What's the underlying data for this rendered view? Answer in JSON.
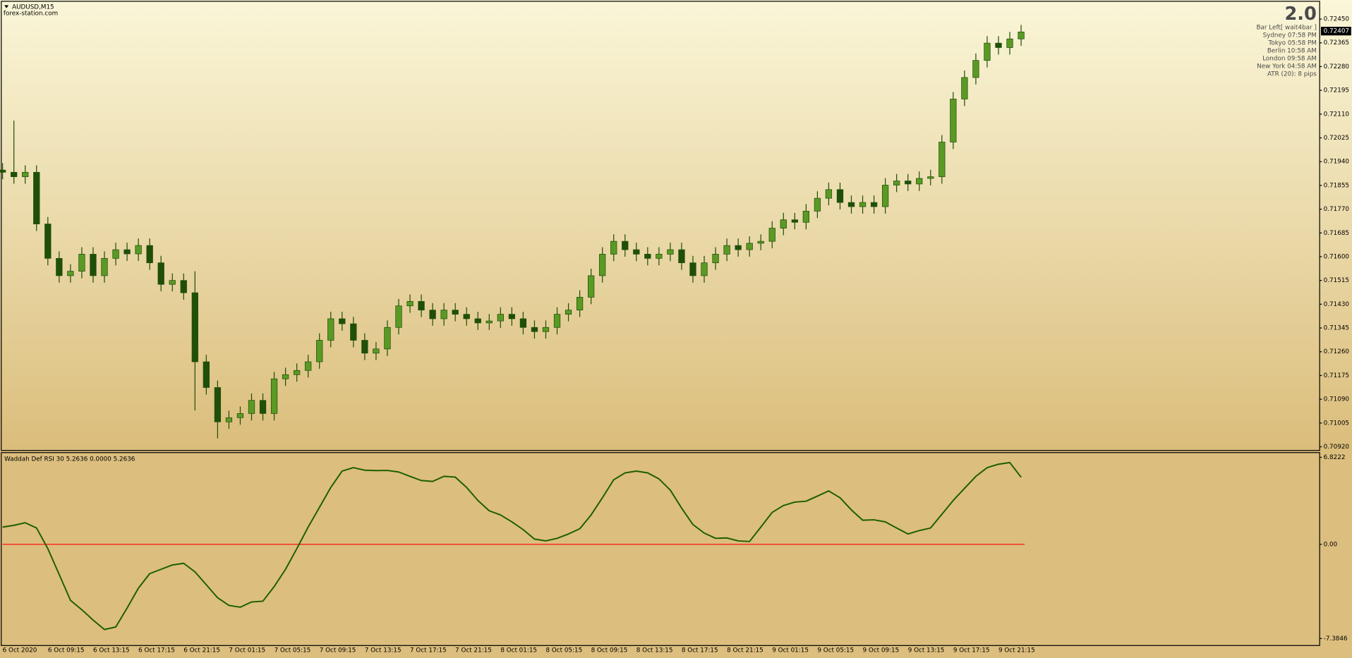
{
  "header": {
    "symbol": "AUDUSD,M15",
    "site": "forex-station.com"
  },
  "info_panel": {
    "version": "2.0",
    "lines": [
      "Bar Left[ wait4bar ]",
      "Sydney  07:58 PM",
      "Tokyo  05:58 PM",
      "Berlin  10:58 AM",
      "London  09:58 AM",
      "New York  04:58 AM",
      "ATR (20): 8 pips"
    ]
  },
  "chart_data": [
    {
      "type": "candlestick",
      "categories": [
        "6 Oct 2020",
        null,
        null,
        null,
        "6 Oct 09:15",
        null,
        null,
        null,
        "6 Oct 13:15",
        null,
        null,
        null,
        "6 Oct 17:15",
        null,
        null,
        null,
        "6 Oct 21:15",
        null,
        null,
        null,
        "7 Oct 01:15",
        null,
        null,
        null,
        "7 Oct 05:15",
        null,
        null,
        null,
        "7 Oct 09:15",
        null,
        null,
        null,
        "7 Oct 13:15",
        null,
        null,
        null,
        "7 Oct 17:15",
        null,
        null,
        null,
        "7 Oct 21:15",
        null,
        null,
        null,
        "8 Oct 01:15",
        null,
        null,
        null,
        "8 Oct 05:15",
        null,
        null,
        null,
        "8 Oct 09:15",
        null,
        null,
        null,
        "8 Oct 13:15",
        null,
        null,
        null,
        "8 Oct 17:15",
        null,
        null,
        null,
        "8 Oct 21:15",
        null,
        null,
        null,
        "9 Oct 01:15",
        null,
        null,
        null,
        "9 Oct 05:15",
        null,
        null,
        null,
        "9 Oct 09:15",
        null,
        null,
        null,
        "9 Oct 13:15",
        null,
        null,
        null,
        "9 Oct 17:15",
        null,
        null,
        null,
        "9 Oct 21:15",
        null,
        null
      ],
      "open": [
        0.7191,
        0.71902,
        0.71886,
        0.71902,
        0.71717,
        0.71594,
        0.71532,
        0.71548,
        0.71609,
        0.71532,
        0.71594,
        0.71625,
        0.7161,
        0.7164,
        0.71578,
        0.71501,
        0.71515,
        0.71471,
        0.71224,
        0.71132,
        0.71009,
        0.71024,
        0.71039,
        0.71086,
        0.71039,
        0.71163,
        0.71178,
        0.71193,
        0.71224,
        0.71301,
        0.71378,
        0.7136,
        0.71301,
        0.71255,
        0.7127,
        0.71347,
        0.71424,
        0.7144,
        0.71409,
        0.71378,
        0.71409,
        0.71394,
        0.71378,
        0.71363,
        0.7137,
        0.71394,
        0.71378,
        0.71347,
        0.71332,
        0.71347,
        0.71394,
        0.71409,
        0.71455,
        0.71532,
        0.71609,
        0.71655,
        0.71625,
        0.71609,
        0.71594,
        0.71609,
        0.71625,
        0.71578,
        0.71532,
        0.71578,
        0.71609,
        0.7164,
        0.71625,
        0.71648,
        0.71655,
        0.71702,
        0.71732,
        0.71723,
        0.71763,
        0.71809,
        0.7184,
        0.71794,
        0.71779,
        0.71794,
        0.71779,
        0.71856,
        0.71871,
        0.7186,
        0.7188,
        0.71886,
        0.7201,
        0.72164,
        0.72241,
        0.72302,
        0.72364,
        0.72348,
        0.72379
      ],
      "high": [
        0.71935,
        0.72087,
        0.71927,
        0.71927,
        0.71742,
        0.71619,
        0.71573,
        0.71634,
        0.71634,
        0.71619,
        0.7165,
        0.7165,
        0.71665,
        0.71665,
        0.71603,
        0.7154,
        0.7154,
        0.71548,
        0.71249,
        0.71157,
        0.71049,
        0.71064,
        0.71111,
        0.71111,
        0.71188,
        0.71203,
        0.71218,
        0.71249,
        0.71326,
        0.71403,
        0.71403,
        0.71385,
        0.71326,
        0.71295,
        0.71372,
        0.71449,
        0.71465,
        0.71465,
        0.71434,
        0.71434,
        0.71434,
        0.71419,
        0.71403,
        0.71395,
        0.71419,
        0.71419,
        0.71403,
        0.71372,
        0.71372,
        0.71419,
        0.71434,
        0.7148,
        0.71557,
        0.71634,
        0.7168,
        0.7168,
        0.7165,
        0.71634,
        0.71634,
        0.7165,
        0.7165,
        0.71603,
        0.71603,
        0.71634,
        0.71665,
        0.71665,
        0.71673,
        0.7168,
        0.71727,
        0.71757,
        0.71757,
        0.71788,
        0.71834,
        0.71865,
        0.71865,
        0.71819,
        0.71819,
        0.71819,
        0.71881,
        0.71896,
        0.71896,
        0.71905,
        0.71911,
        0.72035,
        0.72189,
        0.72266,
        0.72327,
        0.72389,
        0.72389,
        0.72404,
        0.72429
      ],
      "low": [
        0.71877,
        0.71861,
        0.71861,
        0.71692,
        0.71569,
        0.71507,
        0.71507,
        0.71523,
        0.71507,
        0.71507,
        0.71569,
        0.71585,
        0.71585,
        0.71553,
        0.71476,
        0.71476,
        0.71446,
        0.7105,
        0.71107,
        0.7095,
        0.70984,
        0.70999,
        0.71014,
        0.71014,
        0.71014,
        0.71138,
        0.71153,
        0.71168,
        0.71199,
        0.71276,
        0.71335,
        0.71276,
        0.7123,
        0.7123,
        0.71245,
        0.71322,
        0.71399,
        0.71384,
        0.71353,
        0.71353,
        0.71369,
        0.71353,
        0.71338,
        0.71338,
        0.71345,
        0.71353,
        0.71322,
        0.71307,
        0.71307,
        0.71322,
        0.71369,
        0.71384,
        0.7143,
        0.71507,
        0.71584,
        0.716,
        0.71584,
        0.71569,
        0.71569,
        0.71584,
        0.71553,
        0.71507,
        0.71507,
        0.71553,
        0.71584,
        0.716,
        0.716,
        0.71623,
        0.7163,
        0.71677,
        0.71698,
        0.71698,
        0.71738,
        0.71784,
        0.71769,
        0.71754,
        0.71754,
        0.71754,
        0.71754,
        0.71831,
        0.71835,
        0.71835,
        0.71855,
        0.71861,
        0.71985,
        0.72139,
        0.72216,
        0.72277,
        0.72323,
        0.72323,
        0.72354
      ],
      "close": [
        0.71902,
        0.71886,
        0.71902,
        0.71717,
        0.71594,
        0.71532,
        0.71548,
        0.71609,
        0.71532,
        0.71594,
        0.71625,
        0.7161,
        0.7164,
        0.71578,
        0.71501,
        0.71515,
        0.71471,
        0.71224,
        0.71132,
        0.71009,
        0.71024,
        0.71039,
        0.71086,
        0.71039,
        0.71163,
        0.71178,
        0.71193,
        0.71224,
        0.71301,
        0.71378,
        0.7136,
        0.71301,
        0.71255,
        0.7127,
        0.71347,
        0.71424,
        0.7144,
        0.71409,
        0.71378,
        0.71409,
        0.71394,
        0.71378,
        0.71363,
        0.7137,
        0.71394,
        0.71378,
        0.71347,
        0.71332,
        0.71347,
        0.71394,
        0.71409,
        0.71455,
        0.71532,
        0.71609,
        0.71655,
        0.71625,
        0.71609,
        0.71594,
        0.71609,
        0.71625,
        0.71578,
        0.71532,
        0.71578,
        0.71609,
        0.7164,
        0.71625,
        0.71648,
        0.71655,
        0.71702,
        0.71732,
        0.71723,
        0.71763,
        0.71809,
        0.7184,
        0.71794,
        0.71779,
        0.71794,
        0.71779,
        0.71856,
        0.71871,
        0.7186,
        0.7188,
        0.71886,
        0.7201,
        0.72164,
        0.72241,
        0.72302,
        0.72364,
        0.72348,
        0.72379,
        0.72404
      ],
      "up_color": "#5a9a24",
      "down_color": "#1f4f08",
      "current_price": 0.72407,
      "ylim": [
        0.7091,
        0.72509
      ],
      "yticks": [
        {
          "value": 0.7245,
          "label": "0.72450"
        },
        0.72365,
        {
          "value": 0.7228,
          "label": "0.72280"
        },
        0.72195,
        {
          "value": 0.7211,
          "label": "0.72110"
        },
        0.72025,
        {
          "value": 0.7194,
          "label": "0.71940"
        },
        0.71855,
        {
          "value": 0.7177,
          "label": "0.71770"
        },
        0.71685,
        {
          "value": 0.716,
          "label": "0.71600"
        },
        0.71515,
        {
          "value": 0.7143,
          "label": "0.71430"
        },
        0.71345,
        {
          "value": 0.7126,
          "label": "0.71260"
        },
        0.71175,
        {
          "value": 0.7109,
          "label": "0.71090"
        },
        0.71005,
        {
          "value": 0.7092,
          "label": "0.70920"
        }
      ],
      "grid": false
    },
    {
      "type": "line",
      "title": "Waddah Def RSI 30 5.2636 0.0000 5.2636",
      "values": [
        1.35,
        1.49,
        1.69,
        1.28,
        -0.34,
        -2.36,
        -4.39,
        -5.13,
        -5.94,
        -6.68,
        -6.48,
        -5.0,
        -3.44,
        -2.3,
        -1.96,
        -1.62,
        -1.49,
        -2.16,
        -3.17,
        -4.19,
        -4.79,
        -4.93,
        -4.52,
        -4.46,
        -3.31,
        -1.96,
        -0.34,
        1.35,
        2.9,
        4.46,
        5.74,
        6.01,
        5.81,
        5.78,
        5.79,
        5.67,
        5.33,
        5.0,
        4.93,
        5.33,
        5.27,
        4.46,
        3.44,
        2.63,
        2.3,
        1.76,
        1.15,
        0.41,
        0.27,
        0.47,
        0.81,
        1.22,
        2.3,
        3.65,
        5.06,
        5.6,
        5.74,
        5.6,
        5.13,
        4.25,
        2.84,
        1.55,
        0.88,
        0.47,
        0.5,
        0.27,
        0.22,
        1.35,
        2.5,
        3.04,
        3.31,
        3.38,
        3.78,
        4.19,
        3.65,
        2.7,
        1.89,
        1.92,
        1.76,
        1.28,
        0.81,
        1.08,
        1.28,
        2.36,
        3.44,
        4.39,
        5.33,
        6.01,
        6.28,
        6.41,
        5.26
      ],
      "color": "#1b5e00",
      "reference_line": {
        "value": 0,
        "color": "#ff0000"
      },
      "ylim": [
        -7.9,
        7.09
      ],
      "yticks": [
        6.8222,
        {
          "value": 0,
          "label": "0.00"
        },
        -7.3846
      ],
      "grid": false
    }
  ]
}
